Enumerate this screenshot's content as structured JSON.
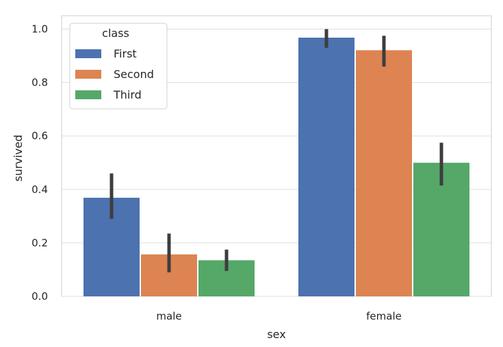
{
  "chart_data": {
    "type": "bar",
    "xlabel": "sex",
    "ylabel": "survived",
    "categories": [
      "male",
      "female"
    ],
    "ylim": [
      0,
      1.05
    ],
    "yticks": [
      "0.0",
      "0.2",
      "0.4",
      "0.6",
      "0.8",
      "1.0"
    ],
    "grid": "horizontal",
    "legend": {
      "title": "class",
      "placement": "top-left"
    },
    "series": [
      {
        "name": "First",
        "color": "#4c72b0",
        "values": [
          0.369,
          0.968
        ],
        "ci_low": [
          0.29,
          0.93
        ],
        "ci_high": [
          0.46,
          1.0
        ]
      },
      {
        "name": "Second",
        "color": "#dd8452",
        "values": [
          0.157,
          0.921
        ],
        "ci_low": [
          0.09,
          0.86
        ],
        "ci_high": [
          0.235,
          0.975
        ]
      },
      {
        "name": "Third",
        "color": "#55a868",
        "values": [
          0.135,
          0.5
        ],
        "ci_low": [
          0.095,
          0.415
        ],
        "ci_high": [
          0.175,
          0.575
        ]
      }
    ]
  }
}
